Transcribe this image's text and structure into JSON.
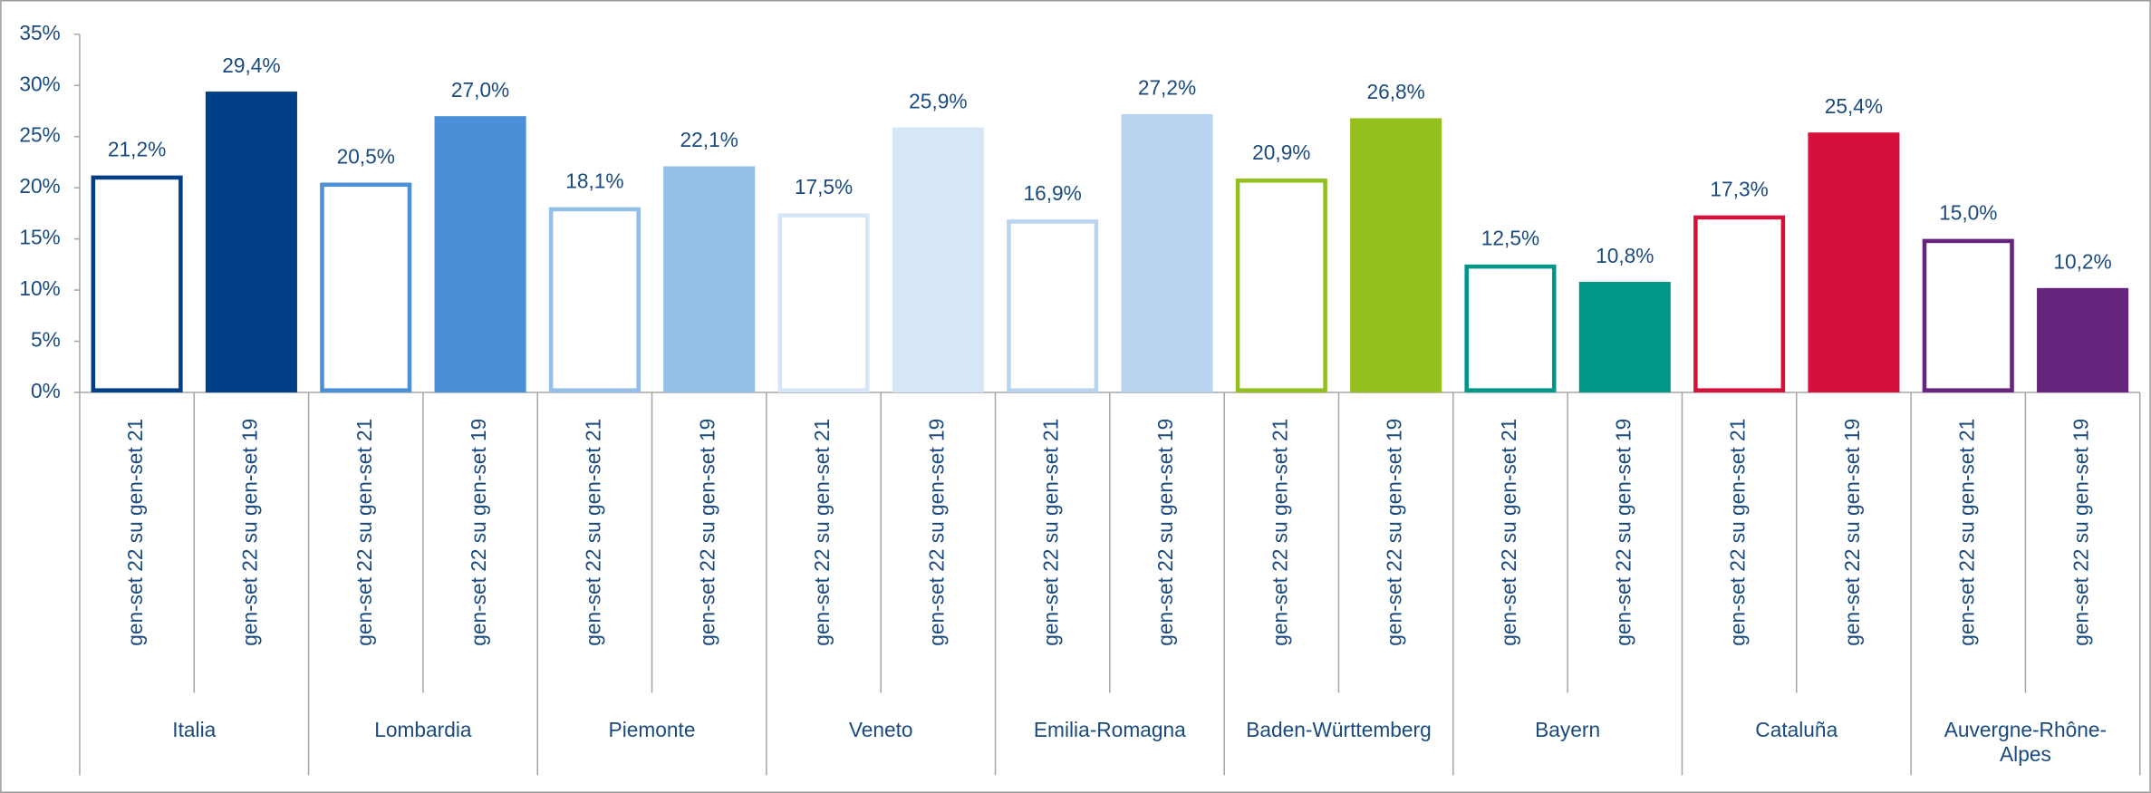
{
  "chart_data": {
    "type": "bar",
    "categories": [
      "Italia",
      "Lombardia",
      "Piemonte",
      "Veneto",
      "Emilia-Romagna",
      "Baden-Württemberg",
      "Bayern",
      "Cataluña",
      "Auvergne-Rhône-Alpes"
    ],
    "colors": [
      "#003f87",
      "#4a90d9",
      "#94bfe8",
      "#d6e6f7",
      "#b8d4f0",
      "#93bf1f",
      "#00968a",
      "#d5103c",
      "#65257e"
    ],
    "series": [
      {
        "name": "gen-set 22 su gen-set 21",
        "style": "outline",
        "values": [
          21.2,
          20.5,
          18.1,
          17.5,
          16.9,
          20.9,
          12.5,
          17.3,
          15.0
        ],
        "value_labels": [
          "21,2%",
          "20,5%",
          "18,1%",
          "17,5%",
          "16,9%",
          "20,9%",
          "12,5%",
          "17,3%",
          "15,0%"
        ]
      },
      {
        "name": "gen-set 22 su gen-set 19",
        "style": "filled",
        "values": [
          29.4,
          27.0,
          22.1,
          25.9,
          27.2,
          26.8,
          10.8,
          25.4,
          10.2
        ],
        "value_labels": [
          "29,4%",
          "27,0%",
          "22,1%",
          "25,9%",
          "27,2%",
          "26,8%",
          "10,8%",
          "25,4%",
          "10,2%"
        ]
      }
    ],
    "ylim": [
      0,
      35
    ],
    "yticks": [
      {
        "value": 0,
        "label": "0%"
      },
      {
        "value": 5,
        "label": "5%"
      },
      {
        "value": 10,
        "label": "10%"
      },
      {
        "value": 15,
        "label": "15%"
      },
      {
        "value": 20,
        "label": "20%"
      },
      {
        "value": 25,
        "label": "25%"
      },
      {
        "value": 30,
        "label": "30%"
      },
      {
        "value": 35,
        "label": "35%"
      }
    ]
  }
}
